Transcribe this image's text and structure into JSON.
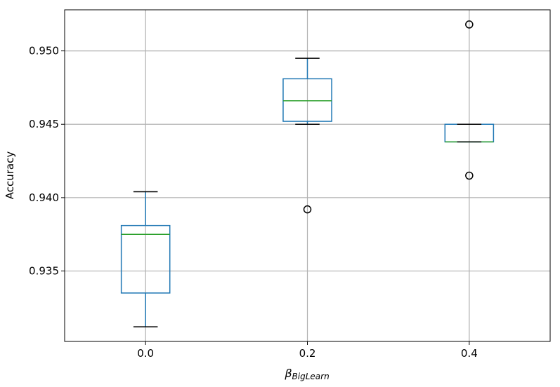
{
  "chart_data": {
    "type": "box",
    "title": "",
    "xlabel": "β",
    "xlabel_subscript": "BigLearn",
    "ylabel": "Accuracy",
    "categories": [
      "0.0",
      "0.2",
      "0.4"
    ],
    "x_positions": [
      0.0,
      0.2,
      0.4
    ],
    "xlim": [
      -0.1,
      0.5
    ],
    "ylim": [
      0.9302,
      0.9528
    ],
    "yticks": [
      0.935,
      0.94,
      0.945,
      0.95
    ],
    "ytick_labels": [
      "0.935",
      "0.940",
      "0.945",
      "0.950"
    ],
    "grid": true,
    "boxes": [
      {
        "category": "0.0",
        "whisker_low": 0.9312,
        "q1": 0.9335,
        "median": 0.9375,
        "q3": 0.9381,
        "whisker_high": 0.9404,
        "outliers": []
      },
      {
        "category": "0.2",
        "whisker_low": 0.945,
        "q1": 0.9452,
        "median": 0.9466,
        "q3": 0.9481,
        "whisker_high": 0.9495,
        "outliers": [
          0.9392
        ]
      },
      {
        "category": "0.4",
        "whisker_low": 0.9438,
        "q1": 0.9438,
        "median": 0.9438,
        "q3": 0.945,
        "whisker_high": 0.945,
        "outliers": [
          0.9518,
          0.9415
        ]
      }
    ],
    "colors": {
      "box": "#1f77b4",
      "median": "#2ca02c",
      "cap": "#000000",
      "grid": "#b0b0b0"
    }
  }
}
